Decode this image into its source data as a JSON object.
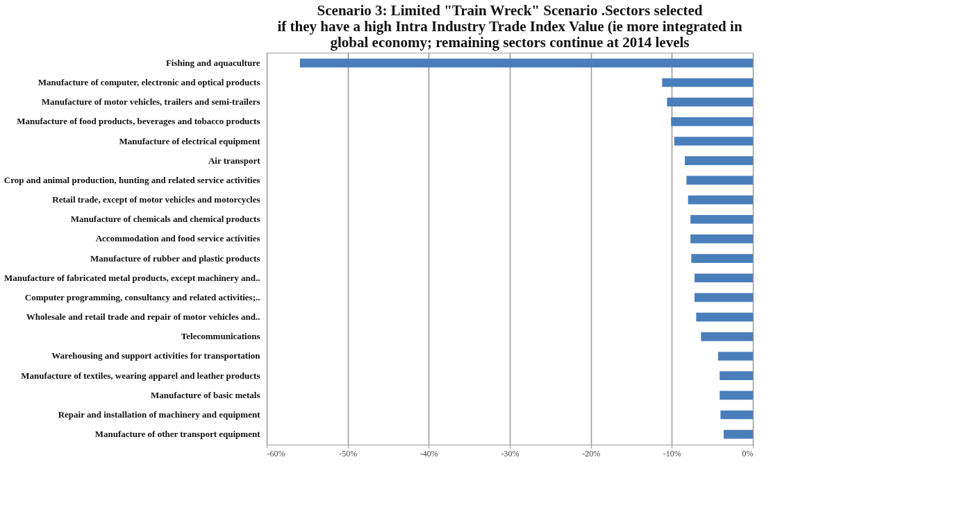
{
  "chart_data": {
    "type": "bar",
    "orientation": "horizontal",
    "title": "Scenario 3: Limited \"Train Wreck\" Scenario .Sectors selected\nif they have a high Intra Industry Trade Index Value (ie more integrated in\nglobal economy; remaining sectors continue at 2014 levels",
    "categories": [
      "Fishing and aquaculture",
      "Manufacture of computer, electronic and optical products",
      "Manufacture of motor vehicles, trailers and semi-trailers",
      "Manufacture of food products, beverages and tobacco products",
      "Manufacture of electrical equipment",
      "Air transport",
      "Crop and animal production, hunting and related service activities",
      "Retail trade, except of motor vehicles and motorcycles",
      "Manufacture of chemicals and chemical products",
      "Accommodation and food service activities",
      "Manufacture of rubber and plastic products",
      "Manufacture of fabricated metal products, except machinery and..",
      "Computer programming, consultancy and related activities;..",
      "Wholesale and retail trade and repair of motor vehicles and..",
      "Telecommunications",
      "Warehousing and support activities for transportation",
      "Manufacture of textiles, wearing apparel and leather products",
      "Manufacture of basic metals",
      "Repair and installation of machinery and equipment",
      "Manufacture of other transport equipment"
    ],
    "values": [
      -55.9,
      -11.2,
      -10.6,
      -10.1,
      -9.7,
      -8.4,
      -8.2,
      -8.0,
      -7.7,
      -7.7,
      -7.6,
      -7.2,
      -7.2,
      -7.0,
      -6.4,
      -4.3,
      -4.1,
      -4.1,
      -4.0,
      -3.6
    ],
    "color": "#4a7ebb",
    "xlim": [
      -60,
      0
    ],
    "xticks": [
      {
        "value": -60,
        "label": "-60%"
      },
      {
        "value": -50,
        "label": "-50%"
      },
      {
        "value": -40,
        "label": "-40%"
      },
      {
        "value": -30,
        "label": "-30%"
      },
      {
        "value": -20,
        "label": "-20%"
      },
      {
        "value": -10,
        "label": "-10%"
      },
      {
        "value": 0,
        "label": "0%"
      }
    ],
    "grid": "x"
  }
}
